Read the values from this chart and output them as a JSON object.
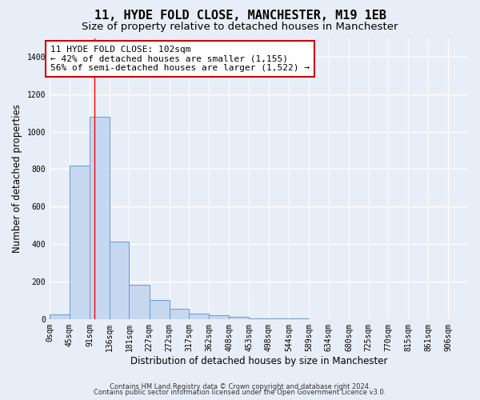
{
  "title": "11, HYDE FOLD CLOSE, MANCHESTER, M19 1EB",
  "subtitle": "Size of property relative to detached houses in Manchester",
  "xlabel": "Distribution of detached houses by size in Manchester",
  "ylabel": "Number of detached properties",
  "footnote1": "Contains HM Land Registry data © Crown copyright and database right 2024.",
  "footnote2": "Contains public sector information licensed under the Open Government Licence v3.0.",
  "annotation_title": "11 HYDE FOLD CLOSE: 102sqm",
  "annotation_line1": "← 42% of detached houses are smaller (1,155)",
  "annotation_line2": "56% of semi-detached houses are larger (1,522) →",
  "bar_edges": [
    0,
    45,
    91,
    136,
    181,
    227,
    272,
    317,
    362,
    408,
    453,
    498,
    544,
    589,
    634,
    680,
    725,
    770,
    815,
    861,
    906
  ],
  "bar_heights": [
    25,
    820,
    1080,
    415,
    185,
    100,
    55,
    30,
    20,
    10,
    5,
    3,
    2,
    1,
    1,
    0,
    0,
    0,
    0,
    0
  ],
  "bar_color": "#c5d8f0",
  "bar_edge_color": "#6699cc",
  "red_line_x": 102,
  "ylim": [
    0,
    1500
  ],
  "yticks": [
    0,
    200,
    400,
    600,
    800,
    1000,
    1200,
    1400
  ],
  "bg_color": "#e8eef8",
  "plot_bg_color": "#e8eef8",
  "grid_color": "#ffffff",
  "annotation_box_color": "#ffffff",
  "annotation_box_edge": "#cc0000",
  "title_fontsize": 11,
  "subtitle_fontsize": 9.5,
  "tick_fontsize": 7,
  "ylabel_fontsize": 8.5,
  "xlabel_fontsize": 8.5,
  "annotation_fontsize": 8,
  "footnote_fontsize": 6
}
